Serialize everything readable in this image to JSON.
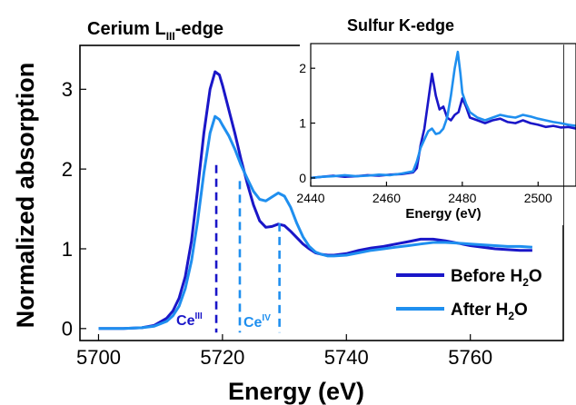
{
  "chart_data": [
    {
      "type": "line",
      "title_main": "Cerium L",
      "title_sub": "III",
      "title_rest": "-edge",
      "xlabel": "Energy (eV)",
      "ylabel": "Normalized absorption",
      "xlim": [
        5697,
        5775
      ],
      "ylim": [
        -0.15,
        3.55
      ],
      "xticks": [
        5700,
        5720,
        5740,
        5760
      ],
      "yticks": [
        0,
        1,
        2,
        3
      ],
      "grid": false,
      "legend_position": "bottom-right",
      "legend": [
        {
          "series": "before",
          "base": "Before H",
          "sub": "2",
          "tail": "O"
        },
        {
          "series": "after",
          "base": "After H",
          "sub": "2",
          "tail": "O"
        }
      ],
      "annotations": [
        {
          "id": "ce3",
          "base": "Ce",
          "sup": "III",
          "x": 5719,
          "color": "#1a16c8"
        },
        {
          "id": "ce4",
          "base": "Ce",
          "sup": "IV",
          "x": 5722.8,
          "color": "#1f8fef"
        }
      ],
      "vlines": [
        {
          "x": 5719,
          "y_top": 2.05,
          "color": "#1a16c8"
        },
        {
          "x": 5722.8,
          "y_top": 1.85,
          "color": "#1f8fef"
        },
        {
          "x": 5729.2,
          "y_top": 1.32,
          "color": "#1f8fef"
        }
      ],
      "series": [
        {
          "key": "before",
          "color": "#1a16c8",
          "points": [
            [
              5700,
              0
            ],
            [
              5704,
              0
            ],
            [
              5707,
              0.01
            ],
            [
              5709,
              0.04
            ],
            [
              5711,
              0.13
            ],
            [
              5712,
              0.22
            ],
            [
              5713,
              0.38
            ],
            [
              5714,
              0.65
            ],
            [
              5715,
              1.1
            ],
            [
              5716,
              1.75
            ],
            [
              5717,
              2.45
            ],
            [
              5718,
              3.0
            ],
            [
              5718.8,
              3.22
            ],
            [
              5719.5,
              3.18
            ],
            [
              5720,
              3.05
            ],
            [
              5721,
              2.75
            ],
            [
              5722,
              2.45
            ],
            [
              5723,
              2.12
            ],
            [
              5724,
              1.82
            ],
            [
              5725,
              1.55
            ],
            [
              5726,
              1.35
            ],
            [
              5727,
              1.27
            ],
            [
              5728,
              1.28
            ],
            [
              5729,
              1.31
            ],
            [
              5730,
              1.29
            ],
            [
              5731,
              1.22
            ],
            [
              5732,
              1.14
            ],
            [
              5733,
              1.06
            ],
            [
              5734,
              1.0
            ],
            [
              5735,
              0.95
            ],
            [
              5736,
              0.93
            ],
            [
              5737,
              0.92
            ],
            [
              5738,
              0.92
            ],
            [
              5740,
              0.94
            ],
            [
              5742,
              0.98
            ],
            [
              5744,
              1.01
            ],
            [
              5746,
              1.03
            ],
            [
              5748,
              1.06
            ],
            [
              5750,
              1.09
            ],
            [
              5752,
              1.12
            ],
            [
              5754,
              1.12
            ],
            [
              5756,
              1.1
            ],
            [
              5758,
              1.07
            ],
            [
              5760,
              1.04
            ],
            [
              5762,
              1.02
            ],
            [
              5764,
              1.0
            ],
            [
              5766,
              0.99
            ],
            [
              5768,
              0.98
            ],
            [
              5770,
              0.98
            ]
          ]
        },
        {
          "key": "after",
          "color": "#1f8fef",
          "points": [
            [
              5700,
              0
            ],
            [
              5704,
              0
            ],
            [
              5707,
              0.01
            ],
            [
              5709,
              0.03
            ],
            [
              5711,
              0.09
            ],
            [
              5712,
              0.16
            ],
            [
              5713,
              0.28
            ],
            [
              5714,
              0.5
            ],
            [
              5715,
              0.85
            ],
            [
              5716,
              1.35
            ],
            [
              5717,
              1.95
            ],
            [
              5718,
              2.45
            ],
            [
              5718.8,
              2.66
            ],
            [
              5719.5,
              2.62
            ],
            [
              5720,
              2.55
            ],
            [
              5721,
              2.42
            ],
            [
              5722,
              2.25
            ],
            [
              5723,
              2.05
            ],
            [
              5724,
              1.88
            ],
            [
              5725,
              1.72
            ],
            [
              5726,
              1.62
            ],
            [
              5727,
              1.6
            ],
            [
              5728,
              1.65
            ],
            [
              5729,
              1.7
            ],
            [
              5730,
              1.66
            ],
            [
              5731,
              1.52
            ],
            [
              5732,
              1.32
            ],
            [
              5733,
              1.15
            ],
            [
              5734,
              1.03
            ],
            [
              5735,
              0.96
            ],
            [
              5736,
              0.93
            ],
            [
              5737,
              0.91
            ],
            [
              5738,
              0.91
            ],
            [
              5740,
              0.92
            ],
            [
              5742,
              0.95
            ],
            [
              5744,
              0.98
            ],
            [
              5746,
              1.0
            ],
            [
              5748,
              1.02
            ],
            [
              5750,
              1.04
            ],
            [
              5752,
              1.06
            ],
            [
              5754,
              1.08
            ],
            [
              5756,
              1.08
            ],
            [
              5758,
              1.07
            ],
            [
              5760,
              1.06
            ],
            [
              5762,
              1.05
            ],
            [
              5764,
              1.04
            ],
            [
              5766,
              1.03
            ],
            [
              5768,
              1.03
            ],
            [
              5770,
              1.02
            ]
          ]
        }
      ]
    },
    {
      "type": "line",
      "title": "Sulfur K-edge",
      "xlabel": "Energy (eV)",
      "xlim": [
        2440,
        2510
      ],
      "ylim": [
        -0.15,
        2.45
      ],
      "xticks": [
        2440,
        2460,
        2480,
        2500
      ],
      "yticks": [
        0,
        1,
        2
      ],
      "grid": false,
      "series": [
        {
          "key": "before",
          "color": "#1a16c8",
          "points": [
            [
              2440,
              0.0
            ],
            [
              2443,
              0.02
            ],
            [
              2446,
              0.04
            ],
            [
              2449,
              0.02
            ],
            [
              2452,
              0.03
            ],
            [
              2455,
              0.05
            ],
            [
              2458,
              0.04
            ],
            [
              2461,
              0.06
            ],
            [
              2464,
              0.07
            ],
            [
              2467,
              0.1
            ],
            [
              2468,
              0.18
            ],
            [
              2469,
              0.6
            ],
            [
              2470,
              0.9
            ],
            [
              2471,
              1.4
            ],
            [
              2472,
              1.9
            ],
            [
              2473,
              1.5
            ],
            [
              2474,
              1.25
            ],
            [
              2475,
              1.3
            ],
            [
              2476,
              1.1
            ],
            [
              2477,
              1.05
            ],
            [
              2478,
              1.15
            ],
            [
              2479,
              1.2
            ],
            [
              2480,
              1.45
            ],
            [
              2481,
              1.3
            ],
            [
              2482,
              1.1
            ],
            [
              2484,
              1.05
            ],
            [
              2486,
              1.0
            ],
            [
              2488,
              1.05
            ],
            [
              2490,
              1.08
            ],
            [
              2492,
              1.02
            ],
            [
              2494,
              1.0
            ],
            [
              2496,
              1.05
            ],
            [
              2498,
              1.0
            ],
            [
              2500,
              0.97
            ],
            [
              2502,
              0.93
            ],
            [
              2504,
              0.95
            ],
            [
              2506,
              0.92
            ],
            [
              2508,
              0.93
            ],
            [
              2510,
              0.9
            ]
          ]
        },
        {
          "key": "after",
          "color": "#1f8fef",
          "points": [
            [
              2440,
              0.0
            ],
            [
              2443,
              0.02
            ],
            [
              2446,
              0.03
            ],
            [
              2449,
              0.05
            ],
            [
              2452,
              0.03
            ],
            [
              2455,
              0.04
            ],
            [
              2458,
              0.06
            ],
            [
              2461,
              0.05
            ],
            [
              2464,
              0.08
            ],
            [
              2467,
              0.12
            ],
            [
              2468,
              0.3
            ],
            [
              2469,
              0.55
            ],
            [
              2470,
              0.7
            ],
            [
              2471,
              0.85
            ],
            [
              2472,
              0.9
            ],
            [
              2473,
              0.8
            ],
            [
              2474,
              0.82
            ],
            [
              2475,
              0.9
            ],
            [
              2476,
              1.1
            ],
            [
              2477,
              1.5
            ],
            [
              2478,
              2.0
            ],
            [
              2478.8,
              2.3
            ],
            [
              2479.5,
              1.9
            ],
            [
              2480,
              1.55
            ],
            [
              2481,
              1.35
            ],
            [
              2482,
              1.2
            ],
            [
              2484,
              1.1
            ],
            [
              2486,
              1.05
            ],
            [
              2488,
              1.1
            ],
            [
              2490,
              1.15
            ],
            [
              2492,
              1.12
            ],
            [
              2494,
              1.1
            ],
            [
              2496,
              1.15
            ],
            [
              2498,
              1.12
            ],
            [
              2500,
              1.08
            ],
            [
              2502,
              1.05
            ],
            [
              2504,
              1.02
            ],
            [
              2506,
              1.0
            ],
            [
              2508,
              0.97
            ],
            [
              2510,
              0.95
            ]
          ]
        }
      ]
    }
  ]
}
